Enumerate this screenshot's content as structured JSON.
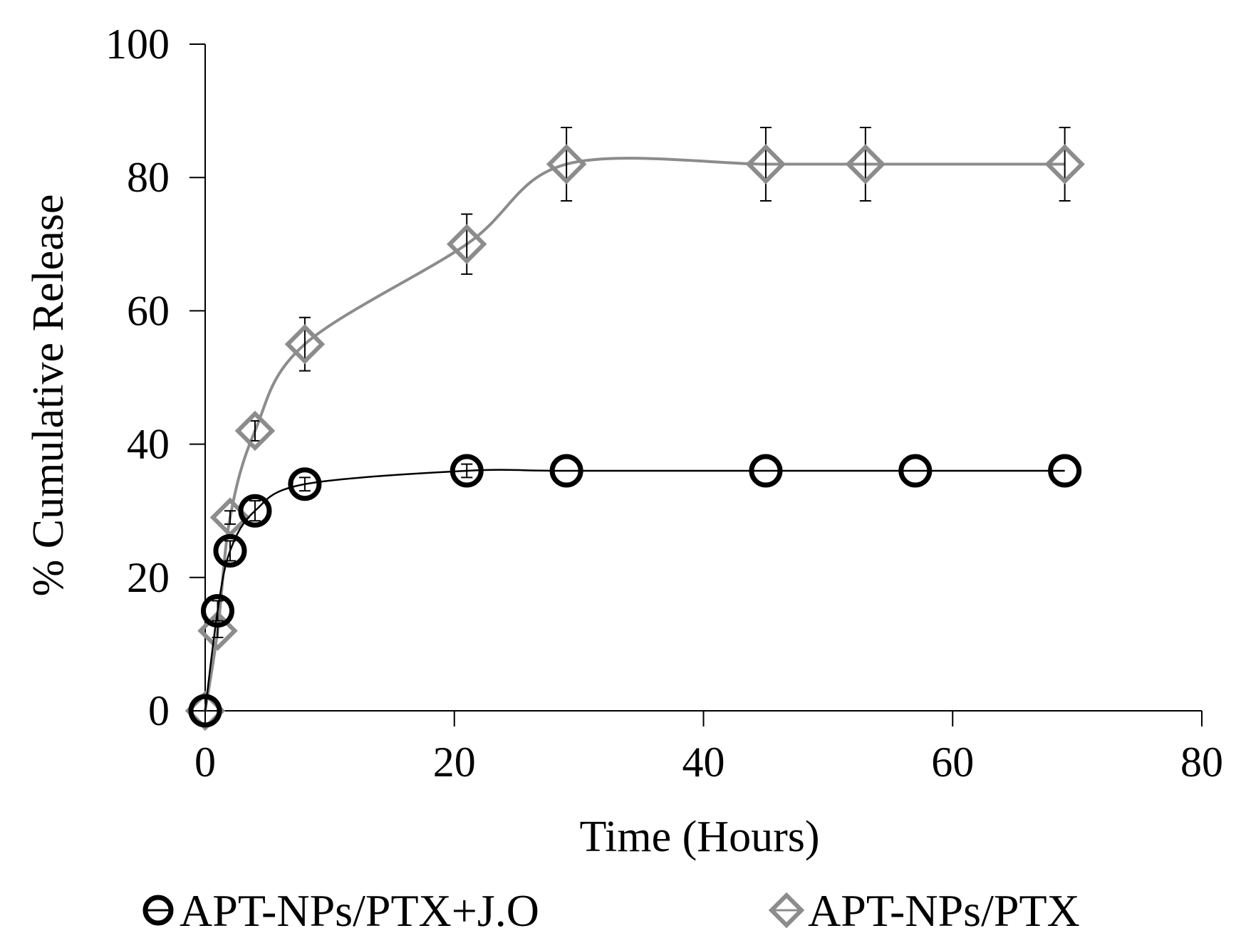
{
  "chart_data": {
    "type": "scatter",
    "title": "",
    "xlabel": "Time (Hours)",
    "ylabel": "% Cumulative Release",
    "xlim": [
      0,
      80
    ],
    "ylim": [
      0,
      100
    ],
    "xticks": [
      0,
      20,
      40,
      60,
      80
    ],
    "yticks": [
      0,
      20,
      40,
      60,
      80,
      100
    ],
    "grid": false,
    "legend_position": "bottom",
    "series": [
      {
        "name": "APT-NPs/PTX+J.O",
        "marker": "circle",
        "color": "#000000",
        "x": [
          0,
          1,
          2,
          4,
          8,
          21,
          29,
          45,
          57,
          69
        ],
        "y": [
          0,
          15,
          24,
          30,
          34,
          36,
          36,
          36,
          36,
          36
        ],
        "error": [
          0,
          1.5,
          1.5,
          1.5,
          1,
          1,
          0,
          0,
          0,
          0
        ]
      },
      {
        "name": "APT-NPs/PTX",
        "marker": "diamond",
        "color": "#8c8c8c",
        "x": [
          0,
          1,
          2,
          4,
          8,
          21,
          29,
          45,
          53,
          69
        ],
        "y": [
          0,
          12,
          29,
          42,
          55,
          70,
          82,
          82,
          82,
          82
        ],
        "error": [
          0,
          1,
          1,
          1.5,
          4,
          4.5,
          5.5,
          5.5,
          5.5,
          5.5
        ]
      }
    ]
  }
}
